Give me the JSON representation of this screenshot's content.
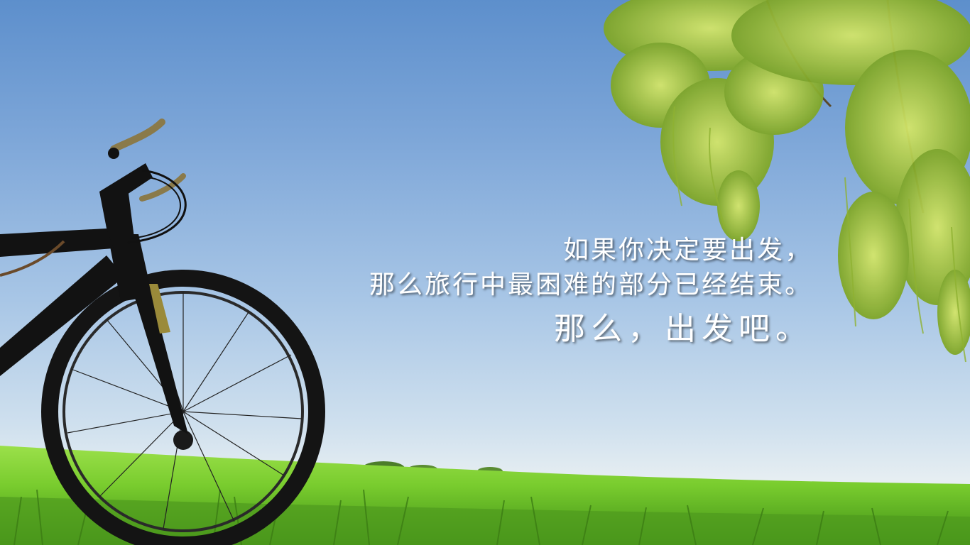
{
  "quote": {
    "line1": "如果你决定要出发，",
    "line2": "那么旅行中最困难的部分已经结束。",
    "line3": "那么，出发吧。"
  },
  "colors": {
    "sky_top": "#5d8fcc",
    "sky_bottom": "#e6eef2",
    "grass": "#7fd23a",
    "leaves": "#a8c93c",
    "bicycle": "#111111",
    "text": "#ffffff"
  }
}
